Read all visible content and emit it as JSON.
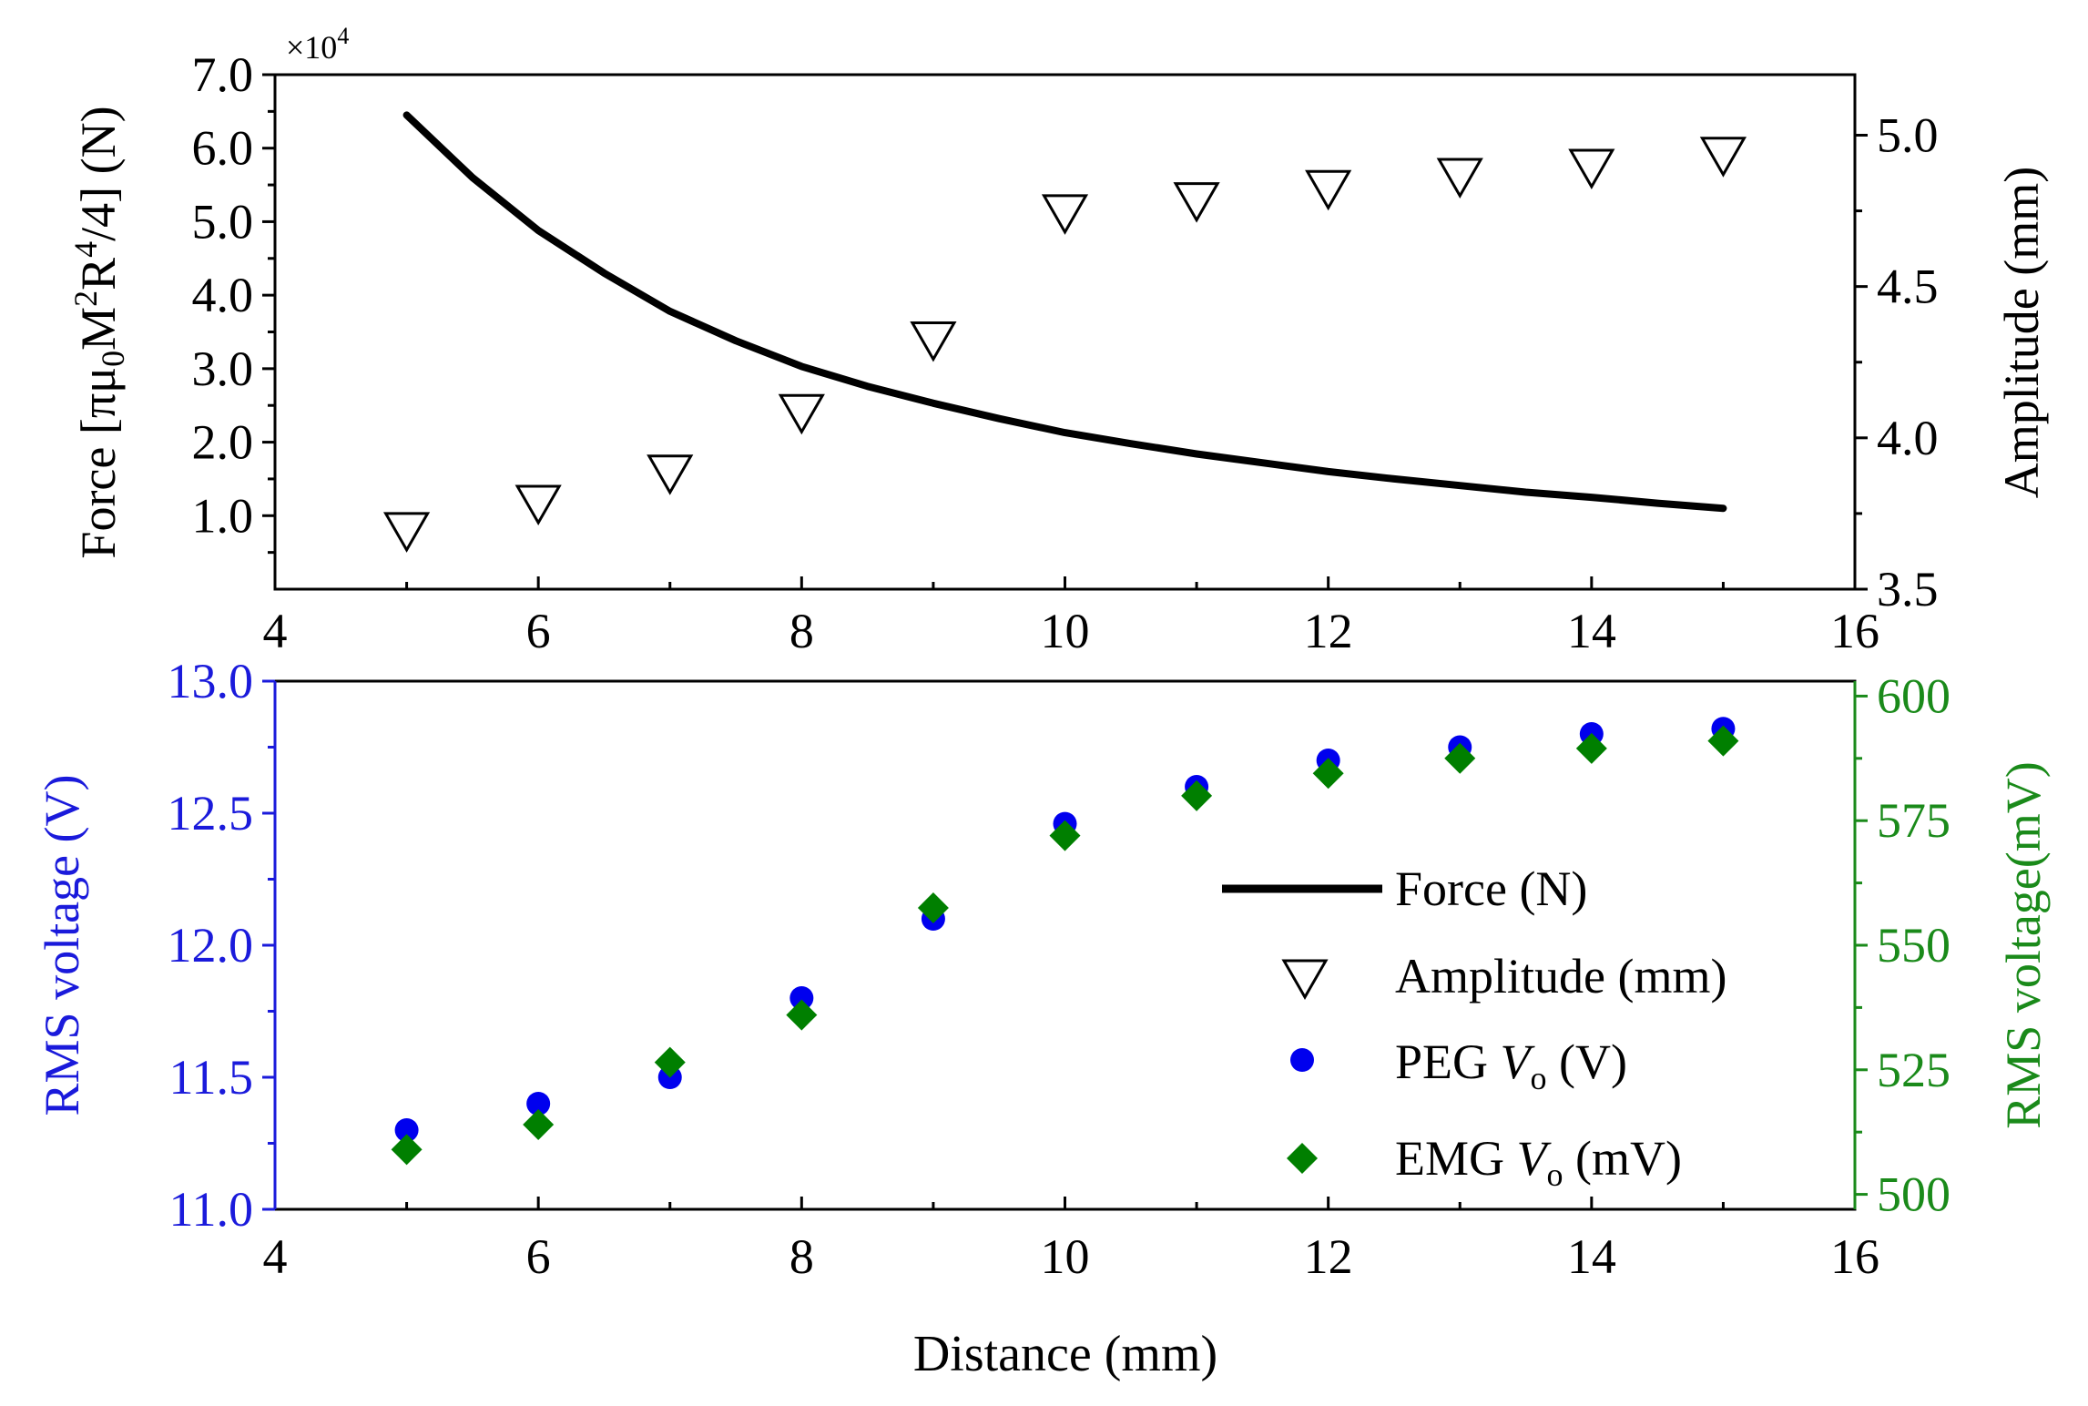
{
  "colors": {
    "axis": "#000000",
    "force_line": "#000000",
    "peg": "#0000ee",
    "emg": "#007f00",
    "left_axis_bottom": "#1a1adb",
    "right_axis_bottom": "#1a8a1a"
  },
  "chart_data": [
    {
      "type": "line",
      "panel": "top",
      "title": "",
      "xlabel": "",
      "ylabel_left": {
        "pre": "Force [πμ",
        "sub1": "0",
        "mid1": "M",
        "sup1": "2",
        "mid2": "R",
        "sup2": "4",
        "post": "/4] (N)"
      },
      "ylabel_right": "Amplitude (mm)",
      "exponent_label": {
        "base": "×10",
        "power": "4"
      },
      "xlim": [
        4,
        16
      ],
      "ylim_left": [
        0,
        7
      ],
      "ylim_right": [
        3.5,
        5.2
      ],
      "x_ticks": [
        "4",
        "6",
        "8",
        "10",
        "12",
        "14",
        "16"
      ],
      "y_ticks_left": [
        "1.0",
        "2.0",
        "3.0",
        "4.0",
        "5.0",
        "6.0",
        "7.0"
      ],
      "y_ticks_right": [
        "3.5",
        "4.0",
        "4.5",
        "5.0"
      ],
      "series": [
        {
          "name": "Force (N)",
          "axis": "left",
          "kind": "line",
          "x": [
            5,
            5.5,
            6,
            6.5,
            7,
            7.5,
            8,
            8.5,
            9,
            9.5,
            10,
            10.5,
            11,
            11.5,
            12,
            12.5,
            13,
            13.5,
            14,
            14.5,
            15
          ],
          "values": [
            6.45,
            5.6,
            4.88,
            4.3,
            3.78,
            3.38,
            3.03,
            2.76,
            2.53,
            2.32,
            2.13,
            1.98,
            1.84,
            1.72,
            1.6,
            1.5,
            1.41,
            1.32,
            1.25,
            1.17,
            1.1
          ]
        },
        {
          "name": "Amplitude (mm)",
          "axis": "right",
          "kind": "scatter",
          "marker": "triangle-down-open",
          "x": [
            5,
            6,
            7,
            8,
            9,
            10,
            11,
            12,
            13,
            14,
            15
          ],
          "values": [
            3.69,
            3.78,
            3.88,
            4.08,
            4.32,
            4.74,
            4.78,
            4.82,
            4.86,
            4.89,
            4.93
          ]
        }
      ]
    },
    {
      "type": "scatter",
      "panel": "bottom",
      "title": "",
      "xlabel": "Distance (mm)",
      "ylabel_left": "RMS voltage (V)",
      "ylabel_right": "RMS voltage(mV)",
      "xlim": [
        4,
        16
      ],
      "ylim_left": [
        11.0,
        13.0
      ],
      "ylim_right": [
        497,
        603
      ],
      "x_ticks": [
        "4",
        "6",
        "8",
        "10",
        "12",
        "14",
        "16"
      ],
      "y_ticks_left": [
        "11.0",
        "11.5",
        "12.0",
        "12.5",
        "13.0"
      ],
      "y_ticks_right": [
        "500",
        "525",
        "550",
        "575",
        "600"
      ],
      "series": [
        {
          "name": "PEG Vo (V)",
          "axis": "left",
          "marker": "circle-filled",
          "x": [
            5,
            6,
            7,
            8,
            9,
            10,
            11,
            12,
            13,
            14,
            15
          ],
          "values": [
            11.3,
            11.4,
            11.5,
            11.8,
            12.1,
            12.46,
            12.6,
            12.7,
            12.75,
            12.8,
            12.82
          ]
        },
        {
          "name": "EMG Vo (mV)",
          "axis": "right",
          "marker": "diamond-filled",
          "x": [
            5,
            6,
            7,
            8,
            9,
            10,
            11,
            12,
            13,
            14,
            15
          ],
          "values": [
            509,
            514,
            526.5,
            536,
            557.5,
            572,
            580,
            584.5,
            587.5,
            589.5,
            591
          ]
        }
      ]
    }
  ],
  "legend": {
    "placement": "bottom panel, right",
    "items": [
      {
        "kind": "line",
        "label": "Force (N)"
      },
      {
        "kind": "triangle",
        "label": "Amplitude (mm)"
      },
      {
        "kind": "circle",
        "pre": "PEG ",
        "var": "V",
        "sub": "o",
        "post": " (V)"
      },
      {
        "kind": "diamond",
        "pre": "EMG ",
        "var": "V",
        "sub": "o",
        "post": " (mV)"
      }
    ]
  }
}
